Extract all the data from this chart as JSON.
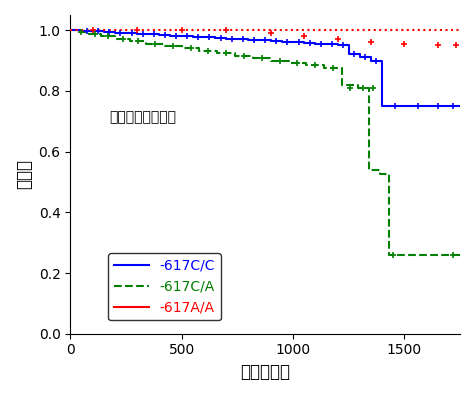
{
  "xlabel": "時間（日）",
  "ylabel": "生存率",
  "xlim": [
    0,
    1750
  ],
  "ylim": [
    0,
    1.05
  ],
  "xticks": [
    0,
    500,
    1000,
    1500
  ],
  "yticks": [
    0,
    0.2,
    0.4,
    0.6,
    0.8,
    1.0
  ],
  "annotation": "病理病期Ｉ－ＩＶ",
  "legend_labels": [
    "-617C/C",
    "-617C/A",
    "-617A/A"
  ],
  "cc_t": [
    0,
    50,
    100,
    150,
    200,
    250,
    300,
    350,
    400,
    450,
    500,
    550,
    600,
    650,
    700,
    750,
    800,
    850,
    900,
    950,
    1000,
    1050,
    1100,
    1150,
    1200,
    1250,
    1300,
    1350,
    1400,
    1450,
    1750
  ],
  "cc_s": [
    1.0,
    0.998,
    0.996,
    0.994,
    0.992,
    0.99,
    0.988,
    0.986,
    0.984,
    0.982,
    0.98,
    0.978,
    0.976,
    0.974,
    0.972,
    0.97,
    0.968,
    0.966,
    0.964,
    0.962,
    0.96,
    0.958,
    0.956,
    0.954,
    0.952,
    0.92,
    0.91,
    0.9,
    0.75,
    0.75,
    0.75
  ],
  "cc_censor_x": [
    75,
    125,
    175,
    225,
    275,
    325,
    375,
    425,
    475,
    525,
    575,
    625,
    675,
    725,
    775,
    825,
    875,
    925,
    975,
    1025,
    1075,
    1125,
    1175,
    1225,
    1275,
    1325,
    1375,
    1460,
    1560,
    1650,
    1720
  ],
  "cc_censor_y": [
    0.998,
    0.996,
    0.994,
    0.992,
    0.99,
    0.988,
    0.986,
    0.984,
    0.982,
    0.98,
    0.978,
    0.976,
    0.974,
    0.972,
    0.97,
    0.968,
    0.966,
    0.964,
    0.962,
    0.96,
    0.958,
    0.956,
    0.954,
    0.952,
    0.92,
    0.91,
    0.9,
    0.75,
    0.75,
    0.75,
    0.75
  ],
  "ca_t": [
    0,
    30,
    80,
    140,
    200,
    270,
    340,
    420,
    500,
    580,
    660,
    740,
    820,
    900,
    980,
    1060,
    1140,
    1220,
    1290,
    1340,
    1390,
    1430,
    1500,
    1750
  ],
  "ca_s": [
    1.0,
    0.994,
    0.987,
    0.98,
    0.972,
    0.964,
    0.956,
    0.948,
    0.94,
    0.932,
    0.924,
    0.916,
    0.908,
    0.9,
    0.892,
    0.884,
    0.876,
    0.82,
    0.81,
    0.54,
    0.527,
    0.26,
    0.26,
    0.26
  ],
  "ca_censor_x": [
    50,
    110,
    170,
    235,
    305,
    380,
    460,
    540,
    620,
    700,
    780,
    860,
    940,
    1020,
    1100,
    1180,
    1255,
    1315,
    1360,
    1450,
    1720
  ],
  "ca_censor_y": [
    0.994,
    0.987,
    0.98,
    0.972,
    0.964,
    0.956,
    0.948,
    0.94,
    0.932,
    0.924,
    0.916,
    0.908,
    0.9,
    0.892,
    0.884,
    0.876,
    0.81,
    0.81,
    0.81,
    0.26,
    0.26
  ],
  "aa_t": [
    0,
    1750
  ],
  "aa_s": [
    1.0,
    1.0
  ],
  "aa_censor_x": [
    100,
    300,
    500,
    700,
    900,
    1050,
    1200,
    1350,
    1500,
    1650,
    1730
  ],
  "aa_censor_y": [
    1.0,
    1.0,
    1.0,
    1.0,
    0.99,
    0.98,
    0.97,
    0.96,
    0.955,
    0.95,
    0.95
  ],
  "background_color": "#ffffff"
}
